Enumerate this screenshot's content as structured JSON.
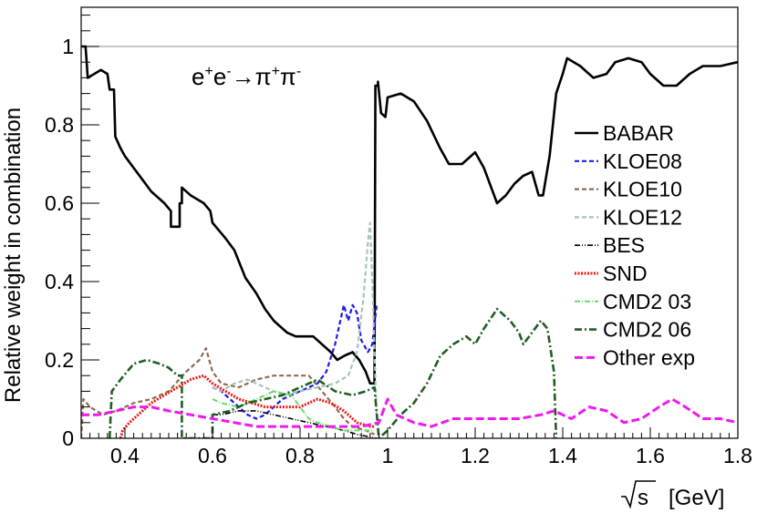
{
  "chart_data": {
    "type": "line",
    "ylabel": "Relative weight in combination",
    "xlabel_root": "s",
    "xlabel_unit": "[GeV]",
    "xlim": [
      0.3,
      1.8
    ],
    "ylim": [
      0,
      1.1
    ],
    "xticks": [
      0.4,
      0.6,
      0.8,
      1.0,
      1.2,
      1.4,
      1.6,
      1.8
    ],
    "xtick_labels": [
      "0.4",
      "0.6",
      "0.8",
      "1",
      "1.2",
      "1.4",
      "1.6",
      "1.8"
    ],
    "yticks": [
      0,
      0.2,
      0.4,
      0.6,
      0.8,
      1.0
    ],
    "ytick_labels": [
      "0",
      "0.2",
      "0.4",
      "0.6",
      "0.8",
      "1"
    ],
    "reference_line": 1.0,
    "annotation": {
      "e1": "e",
      "s1": "+",
      "e2": "e",
      "s2": "-",
      "arrow": "→",
      "p1": "π",
      "s3": "+",
      "p2": "π",
      "s4": "-"
    },
    "legend_position": "right",
    "series": [
      {
        "name": "BABAR",
        "color": "#000000",
        "dash": "solid",
        "width": 2.6,
        "points": [
          [
            0.3,
            1.0
          ],
          [
            0.31,
            1.0
          ],
          [
            0.315,
            0.92
          ],
          [
            0.33,
            0.93
          ],
          [
            0.345,
            0.94
          ],
          [
            0.36,
            0.93
          ],
          [
            0.365,
            0.89
          ],
          [
            0.375,
            0.89
          ],
          [
            0.378,
            0.77
          ],
          [
            0.39,
            0.74
          ],
          [
            0.4,
            0.72
          ],
          [
            0.42,
            0.69
          ],
          [
            0.44,
            0.66
          ],
          [
            0.46,
            0.63
          ],
          [
            0.49,
            0.6
          ],
          [
            0.505,
            0.58
          ],
          [
            0.505,
            0.54
          ],
          [
            0.525,
            0.54
          ],
          [
            0.525,
            0.6
          ],
          [
            0.53,
            0.6
          ],
          [
            0.53,
            0.64
          ],
          [
            0.55,
            0.62
          ],
          [
            0.58,
            0.6
          ],
          [
            0.595,
            0.58
          ],
          [
            0.6,
            0.55
          ],
          [
            0.63,
            0.51
          ],
          [
            0.65,
            0.48
          ],
          [
            0.675,
            0.41
          ],
          [
            0.7,
            0.37
          ],
          [
            0.72,
            0.33
          ],
          [
            0.74,
            0.3
          ],
          [
            0.76,
            0.28
          ],
          [
            0.77,
            0.27
          ],
          [
            0.79,
            0.26
          ],
          [
            0.81,
            0.26
          ],
          [
            0.83,
            0.26
          ],
          [
            0.85,
            0.24
          ],
          [
            0.87,
            0.22
          ],
          [
            0.885,
            0.2
          ],
          [
            0.9,
            0.21
          ],
          [
            0.92,
            0.22
          ],
          [
            0.935,
            0.2
          ],
          [
            0.95,
            0.17
          ],
          [
            0.96,
            0.14
          ],
          [
            0.97,
            0.14
          ],
          [
            0.972,
            0.9
          ],
          [
            0.978,
            0.9
          ],
          [
            0.978,
            0.91
          ],
          [
            0.985,
            0.83
          ],
          [
            0.995,
            0.82
          ],
          [
            1.0,
            0.87
          ],
          [
            1.03,
            0.88
          ],
          [
            1.06,
            0.86
          ],
          [
            1.09,
            0.81
          ],
          [
            1.12,
            0.74
          ],
          [
            1.14,
            0.7
          ],
          [
            1.17,
            0.7
          ],
          [
            1.2,
            0.73
          ],
          [
            1.22,
            0.69
          ],
          [
            1.25,
            0.6
          ],
          [
            1.27,
            0.62
          ],
          [
            1.29,
            0.65
          ],
          [
            1.31,
            0.67
          ],
          [
            1.33,
            0.68
          ],
          [
            1.345,
            0.62
          ],
          [
            1.355,
            0.62
          ],
          [
            1.37,
            0.72
          ],
          [
            1.385,
            0.88
          ],
          [
            1.4,
            0.93
          ],
          [
            1.41,
            0.97
          ],
          [
            1.44,
            0.95
          ],
          [
            1.47,
            0.92
          ],
          [
            1.5,
            0.93
          ],
          [
            1.52,
            0.96
          ],
          [
            1.55,
            0.97
          ],
          [
            1.58,
            0.96
          ],
          [
            1.6,
            0.93
          ],
          [
            1.63,
            0.9
          ],
          [
            1.66,
            0.9
          ],
          [
            1.69,
            0.93
          ],
          [
            1.72,
            0.95
          ],
          [
            1.76,
            0.95
          ],
          [
            1.8,
            0.96
          ]
        ]
      },
      {
        "name": "KLOE08",
        "color": "#1a1aee",
        "dash": "5,3",
        "width": 2.2,
        "points": [
          [
            0.6,
            0.13
          ],
          [
            0.62,
            0.12
          ],
          [
            0.64,
            0.1
          ],
          [
            0.66,
            0.08
          ],
          [
            0.68,
            0.06
          ],
          [
            0.7,
            0.05
          ],
          [
            0.72,
            0.06
          ],
          [
            0.74,
            0.08
          ],
          [
            0.76,
            0.1
          ],
          [
            0.78,
            0.11
          ],
          [
            0.8,
            0.12
          ],
          [
            0.82,
            0.13
          ],
          [
            0.84,
            0.14
          ],
          [
            0.86,
            0.17
          ],
          [
            0.88,
            0.24
          ],
          [
            0.9,
            0.34
          ],
          [
            0.91,
            0.3
          ],
          [
            0.92,
            0.34
          ],
          [
            0.93,
            0.32
          ],
          [
            0.94,
            0.25
          ],
          [
            0.955,
            0.22
          ],
          [
            0.965,
            0.24
          ],
          [
            0.975,
            0.34
          ]
        ]
      },
      {
        "name": "KLOE10",
        "color": "#8c6b50",
        "dash": "5,3",
        "width": 2.2,
        "points": [
          [
            0.3,
            0.0
          ],
          [
            0.305,
            0.1
          ],
          [
            0.32,
            0.08
          ],
          [
            0.35,
            0.06
          ],
          [
            0.38,
            0.07
          ],
          [
            0.42,
            0.09
          ],
          [
            0.46,
            0.1
          ],
          [
            0.5,
            0.12
          ],
          [
            0.54,
            0.17
          ],
          [
            0.57,
            0.2
          ],
          [
            0.585,
            0.23
          ],
          [
            0.6,
            0.17
          ],
          [
            0.62,
            0.14
          ],
          [
            0.66,
            0.13
          ],
          [
            0.7,
            0.15
          ],
          [
            0.74,
            0.16
          ],
          [
            0.78,
            0.16
          ],
          [
            0.82,
            0.16
          ],
          [
            0.85,
            0.12
          ],
          [
            0.88,
            0.08
          ],
          [
            0.9,
            0.05
          ],
          [
            0.92,
            0.03
          ],
          [
            0.95,
            0.02
          ],
          [
            0.97,
            0.01
          ]
        ]
      },
      {
        "name": "KLOE12",
        "color": "#a8c2bc",
        "dash": "5,3",
        "width": 2.2,
        "points": [
          [
            0.6,
            0.13
          ],
          [
            0.62,
            0.12
          ],
          [
            0.65,
            0.14
          ],
          [
            0.68,
            0.15
          ],
          [
            0.72,
            0.13
          ],
          [
            0.76,
            0.11
          ],
          [
            0.8,
            0.12
          ],
          [
            0.84,
            0.13
          ],
          [
            0.88,
            0.14
          ],
          [
            0.91,
            0.16
          ],
          [
            0.93,
            0.22
          ],
          [
            0.945,
            0.36
          ],
          [
            0.955,
            0.5
          ],
          [
            0.96,
            0.55
          ],
          [
            0.965,
            0.4
          ],
          [
            0.975,
            0.05
          ]
        ]
      },
      {
        "name": "BES",
        "color": "#000000",
        "dash": "6,2,1,2,1,2",
        "width": 1.6,
        "points": [
          [
            0.6,
            0.06
          ],
          [
            0.62,
            0.06
          ],
          [
            0.66,
            0.07
          ],
          [
            0.7,
            0.07
          ],
          [
            0.74,
            0.06
          ],
          [
            0.78,
            0.05
          ],
          [
            0.82,
            0.04
          ],
          [
            0.86,
            0.03
          ],
          [
            0.9,
            0.02
          ],
          [
            0.93,
            0.01
          ],
          [
            0.975,
            0.0
          ]
        ]
      },
      {
        "name": "SND",
        "color": "#ee1a1a",
        "dash": "2,1.5",
        "width": 3.0,
        "points": [
          [
            0.39,
            0.0
          ],
          [
            0.395,
            0.02
          ],
          [
            0.41,
            0.04
          ],
          [
            0.43,
            0.06
          ],
          [
            0.46,
            0.09
          ],
          [
            0.49,
            0.11
          ],
          [
            0.52,
            0.13
          ],
          [
            0.55,
            0.15
          ],
          [
            0.58,
            0.16
          ],
          [
            0.6,
            0.14
          ],
          [
            0.63,
            0.12
          ],
          [
            0.66,
            0.1
          ],
          [
            0.69,
            0.09
          ],
          [
            0.72,
            0.08
          ],
          [
            0.76,
            0.08
          ],
          [
            0.8,
            0.08
          ],
          [
            0.84,
            0.1
          ],
          [
            0.87,
            0.09
          ],
          [
            0.9,
            0.07
          ],
          [
            0.93,
            0.04
          ],
          [
            0.96,
            0.03
          ],
          [
            0.97,
            0.03
          ]
        ]
      },
      {
        "name": "CMD2 03",
        "color": "#66dd66",
        "dash": "6,2,1,2",
        "width": 2.0,
        "points": [
          [
            0.6,
            0.1
          ],
          [
            0.62,
            0.09
          ],
          [
            0.66,
            0.08
          ],
          [
            0.7,
            0.1
          ],
          [
            0.74,
            0.12
          ],
          [
            0.78,
            0.11
          ],
          [
            0.8,
            0.08
          ],
          [
            0.82,
            0.05
          ],
          [
            0.84,
            0.04
          ],
          [
            0.87,
            0.03
          ],
          [
            0.9,
            0.02
          ],
          [
            0.97,
            0.02
          ]
        ]
      },
      {
        "name": "CMD2 06",
        "color": "#1f5f1f",
        "dash": "8,3,2,3",
        "width": 2.6,
        "points": [
          [
            0.365,
            0.0
          ],
          [
            0.37,
            0.12
          ],
          [
            0.39,
            0.15
          ],
          [
            0.42,
            0.19
          ],
          [
            0.45,
            0.2
          ],
          [
            0.48,
            0.19
          ],
          [
            0.5,
            0.18
          ],
          [
            0.52,
            0.16
          ],
          [
            0.53,
            0.16
          ],
          [
            0.53,
            0.0
          ],
          [
            0.6,
            0.0
          ],
          [
            0.6,
            0.06
          ],
          [
            0.64,
            0.07
          ],
          [
            0.68,
            0.09
          ],
          [
            0.72,
            0.1
          ],
          [
            0.76,
            0.11
          ],
          [
            0.8,
            0.13
          ],
          [
            0.84,
            0.15
          ],
          [
            0.88,
            0.12
          ],
          [
            0.92,
            0.11
          ],
          [
            0.95,
            0.12
          ],
          [
            0.97,
            0.13
          ],
          [
            0.98,
            0.0
          ],
          [
            1.0,
            0.02
          ],
          [
            1.03,
            0.06
          ],
          [
            1.06,
            0.09
          ],
          [
            1.09,
            0.14
          ],
          [
            1.12,
            0.21
          ],
          [
            1.15,
            0.24
          ],
          [
            1.18,
            0.26
          ],
          [
            1.2,
            0.24
          ],
          [
            1.22,
            0.28
          ],
          [
            1.25,
            0.33
          ],
          [
            1.28,
            0.3
          ],
          [
            1.3,
            0.27
          ],
          [
            1.31,
            0.24
          ],
          [
            1.33,
            0.27
          ],
          [
            1.35,
            0.3
          ],
          [
            1.365,
            0.28
          ],
          [
            1.38,
            0.17
          ],
          [
            1.385,
            0.0
          ]
        ]
      },
      {
        "name": "Other exp",
        "color": "#ee1aee",
        "dash": "9,4",
        "width": 3.0,
        "points": [
          [
            0.3,
            0.06
          ],
          [
            0.34,
            0.06
          ],
          [
            0.38,
            0.07
          ],
          [
            0.42,
            0.08
          ],
          [
            0.46,
            0.08
          ],
          [
            0.5,
            0.07
          ],
          [
            0.55,
            0.06
          ],
          [
            0.6,
            0.05
          ],
          [
            0.65,
            0.04
          ],
          [
            0.7,
            0.03
          ],
          [
            0.75,
            0.03
          ],
          [
            0.8,
            0.03
          ],
          [
            0.85,
            0.03
          ],
          [
            0.9,
            0.03
          ],
          [
            0.94,
            0.03
          ],
          [
            0.98,
            0.04
          ],
          [
            1.0,
            0.1
          ],
          [
            1.02,
            0.06
          ],
          [
            1.06,
            0.04
          ],
          [
            1.1,
            0.03
          ],
          [
            1.15,
            0.05
          ],
          [
            1.2,
            0.05
          ],
          [
            1.25,
            0.05
          ],
          [
            1.3,
            0.05
          ],
          [
            1.35,
            0.06
          ],
          [
            1.38,
            0.07
          ],
          [
            1.42,
            0.05
          ],
          [
            1.46,
            0.08
          ],
          [
            1.5,
            0.07
          ],
          [
            1.54,
            0.04
          ],
          [
            1.58,
            0.05
          ],
          [
            1.62,
            0.08
          ],
          [
            1.65,
            0.1
          ],
          [
            1.68,
            0.08
          ],
          [
            1.72,
            0.05
          ],
          [
            1.76,
            0.05
          ],
          [
            1.8,
            0.04
          ]
        ]
      }
    ]
  }
}
